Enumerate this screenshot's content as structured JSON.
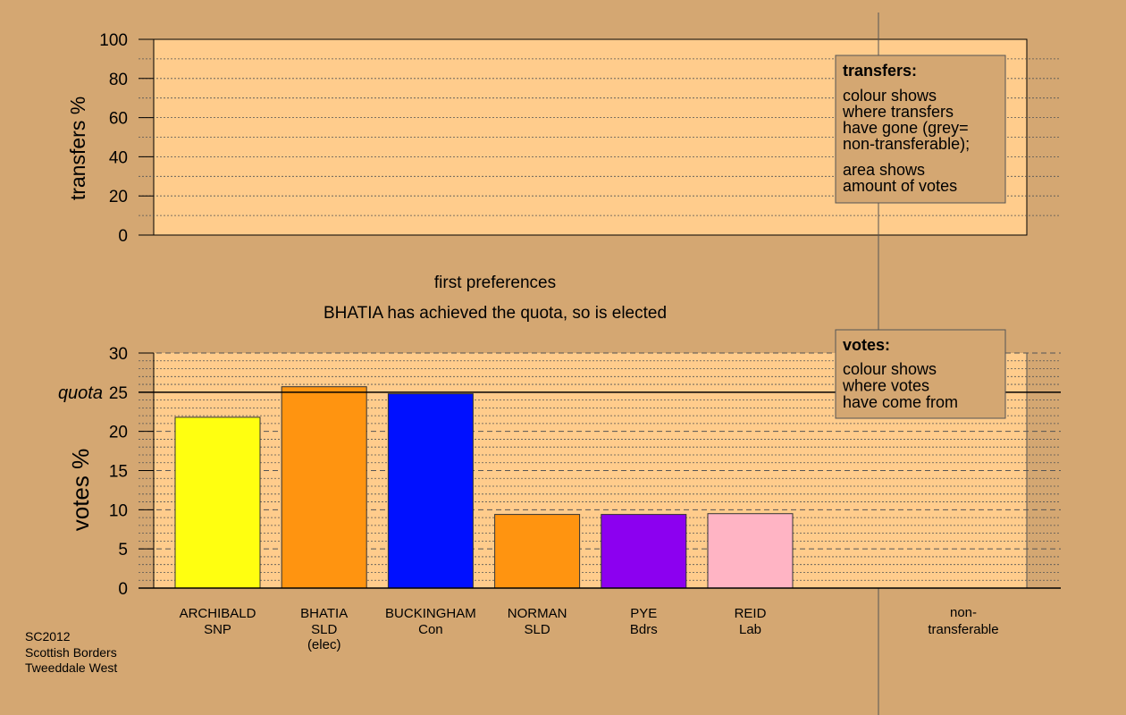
{
  "colors": {
    "background": "#d4a772",
    "panel": "#ffcc8c",
    "legend_box": "#d4a772"
  },
  "top_chart": {
    "ylabel": "transfers %",
    "ylim": [
      0,
      100
    ],
    "ticks": [
      "0",
      "20",
      "40",
      "60",
      "80",
      "100"
    ]
  },
  "transfers_legend": {
    "title": "transfers:",
    "lines1": [
      "colour shows",
      "where transfers",
      "have gone (grey=",
      "non-transferable);"
    ],
    "lines2": [
      "area shows",
      "amount of votes"
    ]
  },
  "stage": {
    "line1": "first preferences",
    "line2": "BHATIA has achieved the quota, so is elected"
  },
  "votes_legend": {
    "title": "votes:",
    "lines": [
      "colour shows",
      "where votes",
      "have come from"
    ]
  },
  "chart_data": {
    "type": "bar",
    "ylabel": "votes %",
    "ylim": [
      0,
      30
    ],
    "yticks": [
      "0",
      "5",
      "10",
      "15",
      "20",
      "25",
      "30"
    ],
    "quota_label": "quota",
    "quota": 25,
    "bars": [
      {
        "name": "ARCHIBALD",
        "party": "SNP",
        "note": "",
        "value": 21.8,
        "color": "#ffff10"
      },
      {
        "name": "BHATIA",
        "party": "SLD",
        "note": "(elec)",
        "value": 25.7,
        "color": "#ff9410"
      },
      {
        "name": "BUCKINGHAM",
        "party": "Con",
        "note": "",
        "value": 24.8,
        "color": "#0010ff"
      },
      {
        "name": "NORMAN",
        "party": "SLD",
        "note": "",
        "value": 9.4,
        "color": "#ff9410"
      },
      {
        "name": "PYE",
        "party": "Bdrs",
        "note": "",
        "value": 9.4,
        "color": "#8c00f0"
      },
      {
        "name": "REID",
        "party": "Lab",
        "note": "",
        "value": 9.5,
        "color": "#ffb4c4"
      }
    ],
    "nontransferable": {
      "line1": "non-",
      "line2": "transferable"
    }
  },
  "footer": {
    "lines": [
      "SC2012",
      "Scottish Borders",
      "Tweeddale West"
    ]
  }
}
